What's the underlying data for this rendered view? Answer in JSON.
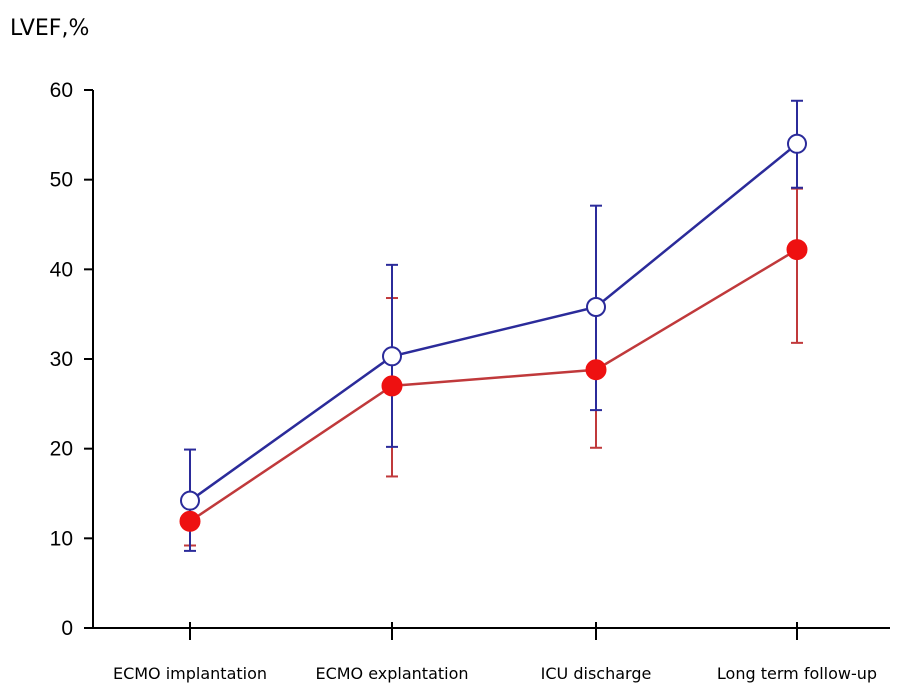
{
  "chart_data": {
    "type": "line",
    "ylabel": "LVEF,%",
    "xlabel": "",
    "title": "",
    "ylim": [
      0,
      60
    ],
    "yticks": [
      0,
      10,
      20,
      30,
      40,
      50,
      60
    ],
    "categories": [
      "ECMO implantation",
      "ECMO explantation",
      "ICU discharge",
      "Long term follow-up"
    ],
    "series": [
      {
        "color": "#2b2b9a",
        "marker": "open-circle",
        "values": [
          14.2,
          30.3,
          35.8,
          54.0
        ],
        "err_upper": [
          19.9,
          40.5,
          47.1,
          58.8
        ],
        "err_lower": [
          8.6,
          20.2,
          24.3,
          49.1
        ]
      },
      {
        "color": "#c0393b",
        "marker_fill": "#ee1111",
        "marker": "filled-circle",
        "values": [
          11.9,
          27.0,
          28.8,
          42.2
        ],
        "err_upper": [
          14.0,
          36.8,
          36.0,
          49.0
        ],
        "err_lower": [
          9.2,
          16.9,
          20.1,
          31.8
        ]
      }
    ]
  }
}
